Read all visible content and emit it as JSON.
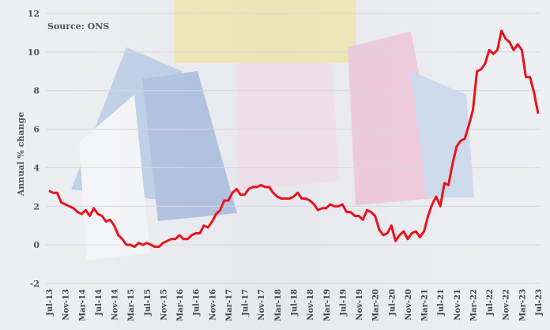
{
  "chart_data": {
    "type": "line",
    "title": "",
    "source": "Source: ONS",
    "ylabel": "Annual % change",
    "xlabel": "",
    "ylim": [
      -2,
      12
    ],
    "yticks": [
      -2,
      0,
      2,
      4,
      6,
      8,
      10,
      12
    ],
    "grid": true,
    "line_color": "#e8141b",
    "x_start": "Jul-13",
    "x_end": "Jul-23",
    "xtick_labels": [
      "Jul-13",
      "Nov-13",
      "Mar-14",
      "Jul-14",
      "Nov-14",
      "Mar-15",
      "Jul-15",
      "Nov-15",
      "Mar-16",
      "Jul-16",
      "Nov-16",
      "Mar-17",
      "Jul-17",
      "Nov-17",
      "Mar-18",
      "Jul-18",
      "Nov-18",
      "Mar-19",
      "Jul-19",
      "Nov-19",
      "Mar-20",
      "Jul-20",
      "Nov-20",
      "Mar-21",
      "Jul-21",
      "Nov-21",
      "Mar-22",
      "Jul-22",
      "Nov-22",
      "Mar-23",
      "Jul-23"
    ],
    "values": [
      2.8,
      2.7,
      2.7,
      2.2,
      2.1,
      2.0,
      1.9,
      1.7,
      1.6,
      1.8,
      1.5,
      1.9,
      1.6,
      1.5,
      1.2,
      1.3,
      1.0,
      0.5,
      0.3,
      0.0,
      0.0,
      -0.1,
      0.1,
      0.0,
      0.1,
      0.0,
      -0.1,
      -0.1,
      0.1,
      0.2,
      0.3,
      0.3,
      0.5,
      0.3,
      0.3,
      0.5,
      0.6,
      0.6,
      1.0,
      0.9,
      1.2,
      1.6,
      1.8,
      2.3,
      2.3,
      2.7,
      2.9,
      2.6,
      2.6,
      2.9,
      3.0,
      3.0,
      3.1,
      3.0,
      3.0,
      2.7,
      2.5,
      2.4,
      2.4,
      2.4,
      2.5,
      2.7,
      2.4,
      2.4,
      2.3,
      2.1,
      1.8,
      1.9,
      1.9,
      2.1,
      2.0,
      2.0,
      2.1,
      1.7,
      1.7,
      1.5,
      1.5,
      1.3,
      1.8,
      1.7,
      1.5,
      0.8,
      0.5,
      0.6,
      1.0,
      0.2,
      0.5,
      0.7,
      0.3,
      0.6,
      0.7,
      0.4,
      0.7,
      1.5,
      2.1,
      2.5,
      2.0,
      3.2,
      3.1,
      4.2,
      5.1,
      5.4,
      5.5,
      6.2,
      7.0,
      9.0,
      9.1,
      9.4,
      10.1,
      9.9,
      10.1,
      11.1,
      10.7,
      10.5,
      10.1,
      10.4,
      10.1,
      8.7,
      8.7,
      7.9,
      6.8
    ]
  }
}
